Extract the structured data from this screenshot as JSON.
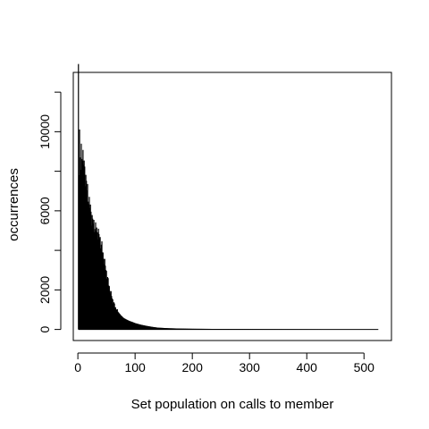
{
  "chart_data": {
    "type": "bar",
    "xlabel": "Set population on calls to member",
    "ylabel": "occurrences",
    "xlim": [
      -8,
      548
    ],
    "ylim": [
      -560,
      13000
    ],
    "xticks": [
      0,
      100,
      200,
      300,
      400,
      500
    ],
    "yticks": [
      0,
      2000,
      4000,
      6000,
      8000,
      10000,
      12000
    ],
    "ytick_labels": [
      "0",
      "2000",
      "",
      "6000",
      "",
      "10000",
      ""
    ],
    "grid": false,
    "bar_color": "#000000",
    "profile": [
      [
        0,
        0
      ],
      [
        1,
        12800
      ],
      [
        2,
        8400
      ],
      [
        3,
        10100
      ],
      [
        4,
        8600
      ],
      [
        5,
        8200
      ],
      [
        6,
        8800
      ],
      [
        8,
        9000
      ],
      [
        10,
        8500
      ],
      [
        12,
        8000
      ],
      [
        14,
        7700
      ],
      [
        16,
        7100
      ],
      [
        18,
        6800
      ],
      [
        20,
        6400
      ],
      [
        22,
        6100
      ],
      [
        24,
        5700
      ],
      [
        26,
        5500
      ],
      [
        28,
        5300
      ],
      [
        30,
        5200
      ],
      [
        32,
        5050
      ],
      [
        34,
        4950
      ],
      [
        36,
        4850
      ],
      [
        38,
        4650
      ],
      [
        40,
        4400
      ],
      [
        42,
        4200
      ],
      [
        44,
        3800
      ],
      [
        46,
        3500
      ],
      [
        48,
        3200
      ],
      [
        50,
        2900
      ],
      [
        52,
        2600
      ],
      [
        54,
        2300
      ],
      [
        56,
        2000
      ],
      [
        58,
        1800
      ],
      [
        60,
        1600
      ],
      [
        62,
        1400
      ],
      [
        64,
        1250
      ],
      [
        66,
        1100
      ],
      [
        68,
        1000
      ],
      [
        70,
        900
      ],
      [
        75,
        720
      ],
      [
        80,
        580
      ],
      [
        85,
        500
      ],
      [
        90,
        430
      ],
      [
        95,
        380
      ],
      [
        100,
        320
      ],
      [
        110,
        240
      ],
      [
        120,
        180
      ],
      [
        130,
        130
      ],
      [
        140,
        90
      ],
      [
        160,
        60
      ],
      [
        180,
        45
      ],
      [
        200,
        35
      ],
      [
        250,
        25
      ],
      [
        300,
        18
      ],
      [
        350,
        12
      ],
      [
        400,
        8
      ],
      [
        450,
        4
      ],
      [
        500,
        2
      ],
      [
        525,
        1
      ]
    ]
  }
}
